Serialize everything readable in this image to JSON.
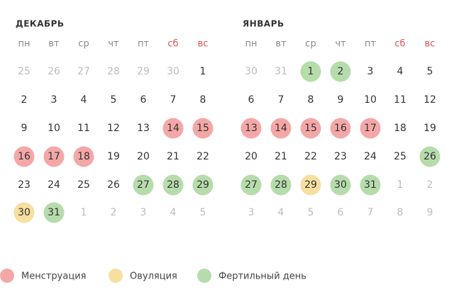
{
  "months": [
    {
      "title": "ДЕКАБРЬ",
      "weekdays": [
        "пн",
        "вт",
        "ср",
        "чт",
        "пт",
        "сб",
        "вс"
      ],
      "weeks": [
        [
          {
            "day": 25,
            "muted": true
          },
          {
            "day": 26,
            "muted": true
          },
          {
            "day": 27,
            "muted": true
          },
          {
            "day": 28,
            "muted": true
          },
          {
            "day": 29,
            "muted": true
          },
          {
            "day": 30,
            "muted": true
          },
          {
            "day": 1
          }
        ],
        [
          {
            "day": 2
          },
          {
            "day": 3
          },
          {
            "day": 4
          },
          {
            "day": 5
          },
          {
            "day": 6
          },
          {
            "day": 7
          },
          {
            "day": 8
          }
        ],
        [
          {
            "day": 9
          },
          {
            "day": 10
          },
          {
            "day": 11
          },
          {
            "day": 12
          },
          {
            "day": 13
          },
          {
            "day": 14,
            "color": "#f4a7a7"
          },
          {
            "day": 15,
            "color": "#f4a7a7"
          }
        ],
        [
          {
            "day": 16,
            "color": "#f4a7a7"
          },
          {
            "day": 17,
            "color": "#f4a7a7"
          },
          {
            "day": 18,
            "color": "#f4a7a7"
          },
          {
            "day": 19
          },
          {
            "day": 20
          },
          {
            "day": 21
          },
          {
            "day": 22
          }
        ],
        [
          {
            "day": 23
          },
          {
            "day": 24
          },
          {
            "day": 25
          },
          {
            "day": 26
          },
          {
            "day": 27,
            "color": "#b6dcab"
          },
          {
            "day": 28,
            "color": "#b6dcab"
          },
          {
            "day": 29,
            "color": "#b6dcab"
          }
        ],
        [
          {
            "day": 30,
            "color": "#f7dfa0"
          },
          {
            "day": 31,
            "color": "#b6dcab"
          },
          {
            "day": 1,
            "muted": true
          },
          {
            "day": 2,
            "muted": true
          },
          {
            "day": 3,
            "muted": true
          },
          {
            "day": 4,
            "muted": true
          },
          {
            "day": 5,
            "muted": true
          }
        ]
      ]
    },
    {
      "title": "ЯНВАРЬ",
      "weekdays": [
        "пн",
        "вт",
        "ср",
        "чт",
        "пт",
        "сб",
        "вс"
      ],
      "weeks": [
        [
          {
            "day": 30,
            "muted": true
          },
          {
            "day": 31,
            "muted": true
          },
          {
            "day": 1,
            "color": "#b6dcab"
          },
          {
            "day": 2,
            "color": "#b6dcab"
          },
          {
            "day": 3
          },
          {
            "day": 4
          },
          {
            "day": 5
          }
        ],
        [
          {
            "day": 6
          },
          {
            "day": 7
          },
          {
            "day": 8
          },
          {
            "day": 9
          },
          {
            "day": 10
          },
          {
            "day": 11
          },
          {
            "day": 12
          }
        ],
        [
          {
            "day": 13,
            "color": "#f4a7a7"
          },
          {
            "day": 14,
            "color": "#f4a7a7"
          },
          {
            "day": 15,
            "color": "#f4a7a7"
          },
          {
            "day": 16,
            "color": "#f4a7a7"
          },
          {
            "day": 17,
            "color": "#f4a7a7"
          },
          {
            "day": 18
          },
          {
            "day": 19
          }
        ],
        [
          {
            "day": 20
          },
          {
            "day": 21
          },
          {
            "day": 22
          },
          {
            "day": 23
          },
          {
            "day": 24
          },
          {
            "day": 25
          },
          {
            "day": 26,
            "color": "#b6dcab"
          }
        ],
        [
          {
            "day": 27,
            "color": "#b6dcab"
          },
          {
            "day": 28,
            "color": "#b6dcab"
          },
          {
            "day": 29,
            "color": "#f7dfa0"
          },
          {
            "day": 30,
            "color": "#b6dcab"
          },
          {
            "day": 31,
            "color": "#b6dcab"
          },
          {
            "day": 1,
            "muted": true
          },
          {
            "day": 2,
            "muted": true
          }
        ],
        [
          {
            "day": 3,
            "muted": true
          },
          {
            "day": 4,
            "muted": true
          },
          {
            "day": 5,
            "muted": true
          },
          {
            "day": 6,
            "muted": true
          },
          {
            "day": 7,
            "muted": true
          },
          {
            "day": 8,
            "muted": true
          },
          {
            "day": 9,
            "muted": true
          }
        ]
      ]
    }
  ],
  "weekend_color": "#d9534f",
  "legend": [
    {
      "label": "Менструация",
      "color": "#f4a7a7"
    },
    {
      "label": "Овуляция",
      "color": "#f7dfa0"
    },
    {
      "label": "Фертильный день",
      "color": "#b6dcab"
    }
  ]
}
